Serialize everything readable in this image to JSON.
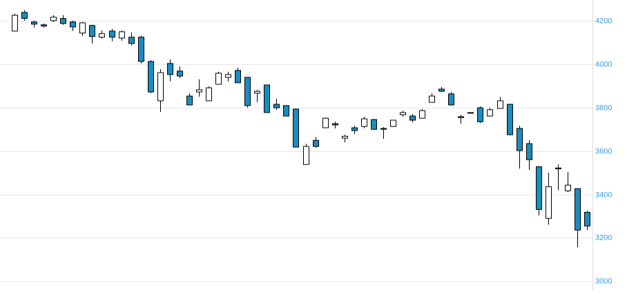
{
  "chart_data": {
    "type": "candlestick",
    "open": [
      4152,
      4238,
      4194,
      4181,
      4200,
      4210,
      4194,
      4143,
      4178,
      4124,
      4152,
      4120,
      4124,
      4124,
      4012,
      3831,
      4003,
      3968,
      3853,
      3872,
      3831,
      3907,
      3939,
      3971,
      3939,
      3866,
      3904,
      3815,
      3809,
      3793,
      3538,
      3649,
      3707,
      3726,
      3659,
      3707,
      3713,
      3745,
      3704,
      3713,
      3767,
      3761,
      3751,
      3824,
      3885,
      3863,
      3758,
      3774,
      3799,
      3761,
      3796,
      3815,
      3704,
      3634,
      3528,
      3290,
      3522,
      3417,
      3427,
      3318
    ],
    "high": [
      4232,
      4248,
      4200,
      4187,
      4225,
      4225,
      4200,
      4194,
      4181,
      4155,
      4162,
      4155,
      4146,
      4130,
      4018,
      3977,
      4022,
      3990,
      3866,
      3930,
      3898,
      3965,
      3965,
      3984,
      3939,
      3882,
      3904,
      3840,
      3809,
      3796,
      3634,
      3665,
      3754,
      3735,
      3675,
      3716,
      3758,
      3748,
      3710,
      3742,
      3786,
      3770,
      3793,
      3866,
      3895,
      3872,
      3767,
      3777,
      3805,
      3799,
      3850,
      3818,
      3716,
      3650,
      3531,
      3500,
      3538,
      3503,
      3427,
      3325
    ],
    "low": [
      4152,
      4200,
      4168,
      4168,
      4194,
      4181,
      4152,
      4130,
      4095,
      4117,
      4105,
      4108,
      4086,
      4003,
      3866,
      3780,
      3920,
      3936,
      3812,
      3850,
      3831,
      3907,
      3920,
      3914,
      3800,
      3825,
      3777,
      3790,
      3761,
      3618,
      3538,
      3615,
      3707,
      3704,
      3640,
      3678,
      3704,
      3697,
      3656,
      3713,
      3758,
      3732,
      3751,
      3824,
      3872,
      3809,
      3726,
      3774,
      3729,
      3758,
      3796,
      3672,
      3519,
      3513,
      3303,
      3261,
      3420,
      3411,
      3157,
      3236
    ],
    "close": [
      4225,
      4210,
      4184,
      4175,
      4216,
      4187,
      4171,
      4190,
      4127,
      4140,
      4124,
      4149,
      4095,
      4012,
      3872,
      3961,
      3952,
      3945,
      3812,
      3882,
      3891,
      3958,
      3952,
      3914,
      3809,
      3875,
      3777,
      3799,
      3761,
      3618,
      3621,
      3621,
      3751,
      3720,
      3668,
      3694,
      3748,
      3700,
      3700,
      3742,
      3777,
      3742,
      3786,
      3853,
      3875,
      3812,
      3754,
      3777,
      3735,
      3790,
      3831,
      3675,
      3602,
      3560,
      3331,
      3436,
      3518,
      3443,
      3236,
      3255
    ],
    "up_color": "#ffffff",
    "down_color": "#1a8cc0",
    "ylim": [
      2960,
      4295
    ],
    "yticks": [
      3000,
      3200,
      3400,
      3600,
      3800,
      4000,
      4200
    ],
    "grid": true
  }
}
